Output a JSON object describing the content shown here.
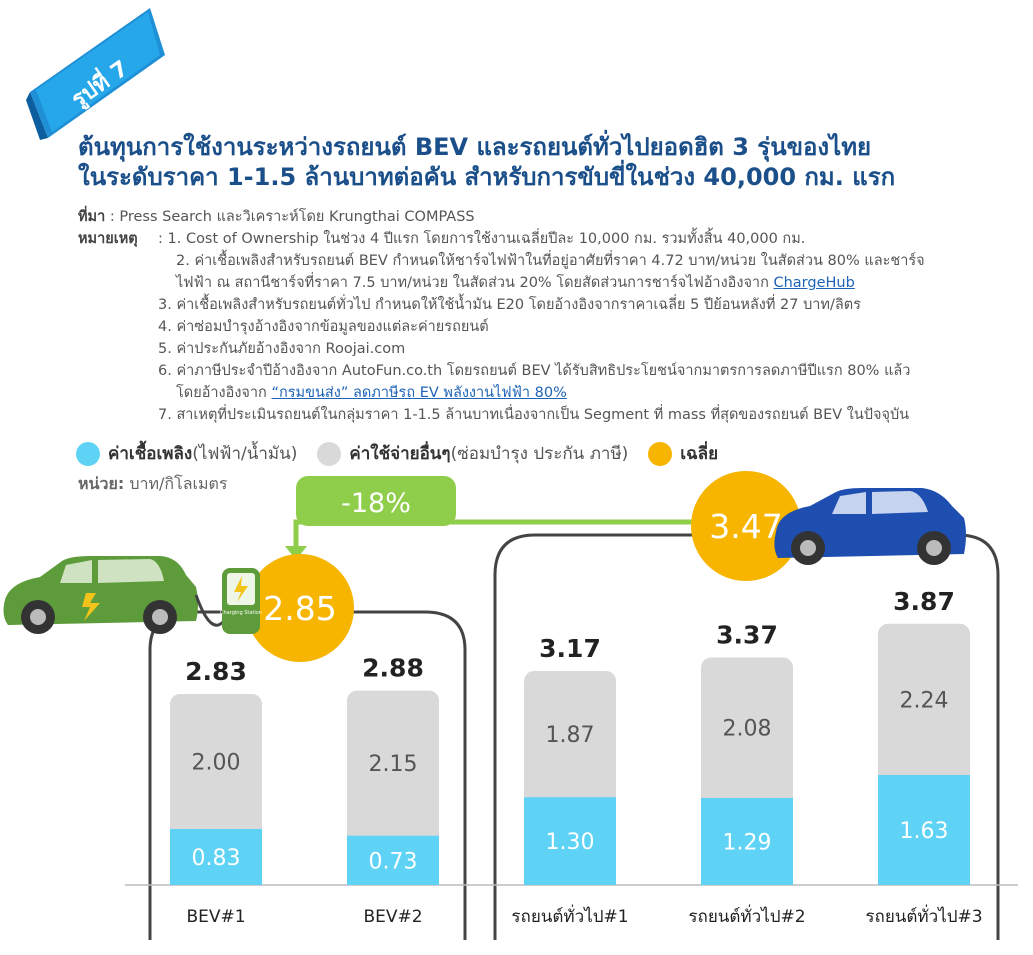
{
  "badge": {
    "text": "รูปที่ 7"
  },
  "title": {
    "line1": "ต้นทุนการใช้งานระหว่างรถยนต์ BEV และรถยนต์ทั่วไปยอดฮิต 3 รุ่นของไทย",
    "line2": "ในระดับราคา 1-1.5 ล้านบาทต่อคัน สำหรับการขับขี่ในช่วง 40,000 กม. แรก"
  },
  "source": {
    "label": "ที่มา",
    "text": " : Press Search และวิเคราะห์โดย Krungthai COMPASS"
  },
  "notes": {
    "label": "หมายเหตุ",
    "n1": ": 1. Cost of Ownership ในช่วง 4 ปีแรก โดยการใช้งานเฉลี่ยปีละ 10,000 กม. รวมทั้งสิ้น 40,000 กม.",
    "n2a": "2. ค่าเชื้อเพลิงสำหรับรถยนต์ BEV กำหนดให้ชาร์จไฟฟ้าในที่อยู่อาศัยที่ราคา 4.72 บาท/หน่วย ในสัดส่วน 80% และชาร์จ",
    "n2b": "ไฟฟ้า ณ สถานีชาร์จที่ราคา 7.5 บาท/หน่วย ในสัดส่วน 20% โดยสัดส่วนการชาร์จไฟอ้างอิงจาก ",
    "n2link": "ChargeHub",
    "n3": "3. ค่าเชื้อเพลิงสำหรับรถยนต์ทั่วไป กำหนดให้ใช้น้ำมัน E20 โดยอ้างอิงจากราคาเฉลี่ย 5 ปีย้อนหลังที่ 27 บาท/ลิตร",
    "n4": "4. ค่าซ่อมบำรุงอ้างอิงจากข้อมูลของแต่ละค่ายรถยนต์",
    "n5": "5. ค่าประกันภัยอ้างอิงจาก Roojai.com",
    "n6a": "6. ค่าภาษีประจำปีอ้างอิงจาก AutoFun.co.th โดยรถยนต์ BEV ได้รับสิทธิประโยชน์จากมาตรการลดภาษีปีแรก 80% แล้ว",
    "n6b": "โดยอ้างอิงจาก ",
    "n6link": "“กรมขนส่ง” ลดภาษีรถ EV พลังงานไฟฟ้า 80%",
    "n7": "7. สาเหตุที่ประเมินรถยนต์ในกลุ่มราคา 1-1.5 ล้านบาทเนื่องจากเป็น Segment ที่ mass ที่สุดของรถยนต์ BEV ในปัจจุบัน"
  },
  "legend": {
    "fuel": "ค่าเชื้อเพลิง",
    "fuel_detail": " (ไฟฟ้า/น้ำมัน)",
    "other": "ค่าใช้จ่ายอื่นๆ",
    "other_detail": " (ซ่อมบำรุง ประกัน ภาษี)",
    "avg": "เฉลี่ย"
  },
  "unit": {
    "label": "หน่วย:",
    "text": " บาท/กิโลเมตร"
  },
  "charger_text": "Charging Station",
  "chart_data": {
    "type": "bar",
    "stacked": true,
    "categories": [
      "BEV#1",
      "BEV#2",
      "รถยนต์ทั่วไป#1",
      "รถยนต์ทั่วไป#2",
      "รถยนต์ทั่วไป#3"
    ],
    "series": [
      {
        "name": "ค่าเชื้อเพลิง (ไฟฟ้า/น้ำมัน)",
        "values": [
          0.83,
          0.73,
          1.3,
          1.29,
          1.63
        ],
        "color": "#5fd3f6"
      },
      {
        "name": "ค่าใช้จ่ายอื่นๆ (ซ่อมบำรุง ประกัน ภาษี)",
        "values": [
          2.0,
          2.15,
          1.87,
          2.08,
          2.24
        ],
        "color": "#d9d9d9"
      }
    ],
    "total_labels": [
      "2.83",
      "2.88",
      "3.17",
      "3.37",
      "3.87"
    ],
    "fuel_labels": [
      "0.83",
      "0.73",
      "1.30",
      "1.29",
      "1.63"
    ],
    "other_labels": [
      "2.00",
      "2.15",
      "1.87",
      "2.08",
      "2.24"
    ],
    "averages": [
      {
        "group": "BEV",
        "value": 2.85,
        "label": "2.85"
      },
      {
        "group": "รถยนต์ทั่วไป",
        "value": 3.47,
        "label": "3.47"
      }
    ],
    "difference_label": "-18%",
    "ylabel": "บาท/กิโลเมตร",
    "colors": {
      "fuel": "#5fd3f6",
      "other": "#d9d9d9",
      "average": "#f7b500",
      "diff": "#8fce4b",
      "title": "#1b4f8a",
      "badge": "#1a9ee0"
    }
  }
}
